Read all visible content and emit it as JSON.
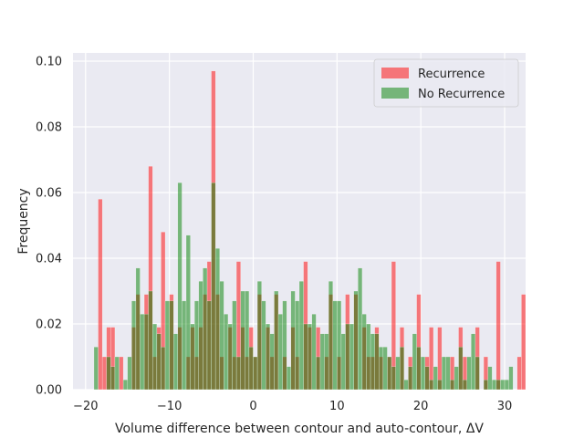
{
  "chart_data": {
    "type": "bar",
    "subtype": "overlapping histogram",
    "xlabel": "Volume difference between contour and auto-contour, ΔV",
    "ylabel": "Frequency",
    "xlim": [
      -21.5,
      32.5
    ],
    "ylim": [
      0,
      0.1025
    ],
    "xticks": [
      -20,
      -10,
      0,
      10,
      20,
      30
    ],
    "xtick_labels": [
      "−20",
      "−10",
      "0",
      "10",
      "20",
      "30"
    ],
    "yticks": [
      0,
      0.02,
      0.04,
      0.06,
      0.08,
      0.1
    ],
    "ytick_labels": [
      "0.00",
      "0.02",
      "0.04",
      "0.06",
      "0.08",
      "0.10"
    ],
    "grid": true,
    "background": "#eaeaf2",
    "legend_position": "top-right",
    "series": [
      {
        "name": "Recurrence",
        "color": "#ff0000",
        "opacity": 0.5,
        "bin_start": -18.5,
        "bin_width": 0.5,
        "values": [
          0.058,
          0.01,
          0.019,
          0.019,
          0.0,
          0.01,
          0.0,
          0.0,
          0.019,
          0.029,
          0.0,
          0.029,
          0.068,
          0.01,
          0.019,
          0.048,
          0.0,
          0.029,
          0.0,
          0.019,
          0.0,
          0.01,
          0.019,
          0.01,
          0.019,
          0.029,
          0.039,
          0.097,
          0.029,
          0.01,
          0.0,
          0.019,
          0.01,
          0.039,
          0.019,
          0.01,
          0.019,
          0.01,
          0.029,
          0.0,
          0.019,
          0.01,
          0.029,
          0.0,
          0.01,
          0.0,
          0.019,
          0.01,
          0.0,
          0.039,
          0.019,
          0.0,
          0.019,
          0.0,
          0.01,
          0.029,
          0.0,
          0.01,
          0.0,
          0.029,
          0.0,
          0.029,
          0.0,
          0.019,
          0.01,
          0.01,
          0.019,
          0.01,
          0.0,
          0.01,
          0.039,
          0.0,
          0.019,
          0.0,
          0.01,
          0.0,
          0.029,
          0.0,
          0.01,
          0.019,
          0.0,
          0.019,
          0.0,
          0.0,
          0.01,
          0.0,
          0.019,
          0.01,
          0.0,
          0.0,
          0.019,
          0.0,
          0.01,
          0.0,
          0.0,
          0.039,
          0.0,
          0.0,
          0.0,
          0.0,
          0.01,
          0.029
        ]
      },
      {
        "name": "No Recurrence",
        "color": "#008000",
        "opacity": 0.5,
        "bin_start": -19,
        "bin_width": 0.5,
        "values": [
          0.013,
          0.0,
          0.0,
          0.01,
          0.007,
          0.01,
          0.0,
          0.003,
          0.01,
          0.027,
          0.037,
          0.023,
          0.023,
          0.03,
          0.02,
          0.017,
          0.013,
          0.027,
          0.027,
          0.017,
          0.063,
          0.027,
          0.047,
          0.02,
          0.027,
          0.033,
          0.037,
          0.027,
          0.063,
          0.043,
          0.033,
          0.023,
          0.02,
          0.027,
          0.01,
          0.03,
          0.03,
          0.013,
          0.01,
          0.033,
          0.027,
          0.02,
          0.017,
          0.03,
          0.023,
          0.027,
          0.007,
          0.03,
          0.027,
          0.033,
          0.02,
          0.02,
          0.023,
          0.01,
          0.017,
          0.017,
          0.033,
          0.027,
          0.027,
          0.017,
          0.02,
          0.02,
          0.03,
          0.037,
          0.023,
          0.02,
          0.017,
          0.017,
          0.013,
          0.013,
          0.01,
          0.007,
          0.01,
          0.013,
          0.003,
          0.007,
          0.017,
          0.013,
          0.01,
          0.007,
          0.003,
          0.007,
          0.003,
          0.01,
          0.01,
          0.003,
          0.007,
          0.013,
          0.003,
          0.01,
          0.017,
          0.01,
          0.0,
          0.003,
          0.007,
          0.003,
          0.003,
          0.003,
          0.003,
          0.007
        ]
      }
    ]
  }
}
